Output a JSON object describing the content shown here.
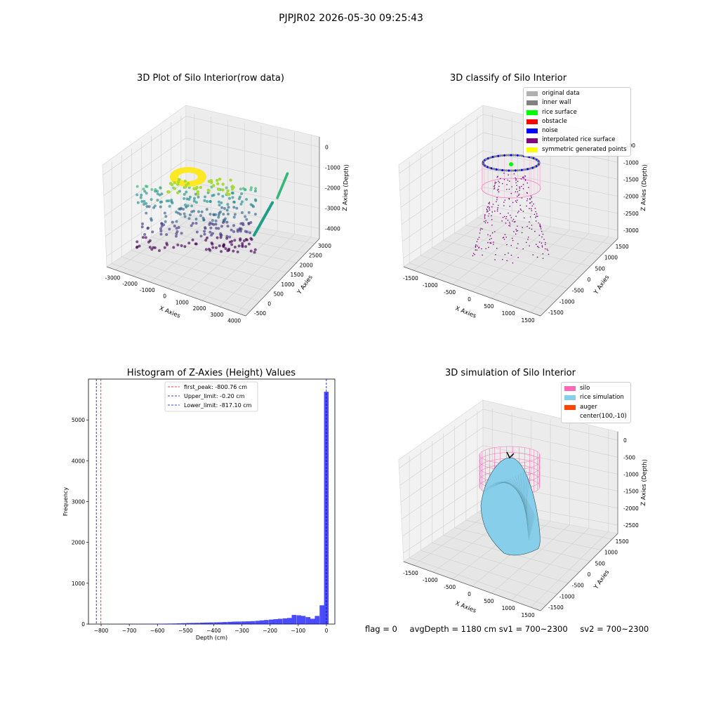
{
  "suptitle": "PJPJR02 2026-05-30 09:25:43",
  "chart_data": [
    {
      "type": "scatter",
      "title": "3D Plot of Silo Interior(row data)",
      "xlabel": "X Axies",
      "ylabel": "Y Axies",
      "zlabel": "Z Axies (Depth)",
      "x_ticks": [
        "-3000",
        "-2000",
        "-1000",
        "0",
        "1000",
        "2000",
        "3000",
        "4000"
      ],
      "y_ticks": [
        "-500",
        "0",
        "500",
        "1000",
        "1500",
        "2000",
        "2500",
        "3000"
      ],
      "z_ticks": [
        "0",
        "-1000",
        "-2000",
        "-3000",
        "-4000"
      ],
      "colormap": "viridis"
    },
    {
      "type": "scatter",
      "title": "3D classify of Silo Interior",
      "xlabel": "X Axies",
      "ylabel": "Y Axies",
      "zlabel": "Z Axies (Depth)",
      "x_ticks": [
        "-1500",
        "-1000",
        "-500",
        "0",
        "500",
        "1000",
        "1500"
      ],
      "y_ticks": [
        "-1500",
        "-1000",
        "-500",
        "0",
        "500",
        "1000",
        "1500"
      ],
      "z_ticks": [
        "-500",
        "-1000",
        "-1500",
        "-2000",
        "-2500",
        "-3000"
      ],
      "legend": [
        {
          "label": "original data",
          "color": "#b0b0b0"
        },
        {
          "label": "inner wall",
          "color": "#808080"
        },
        {
          "label": "rice surface",
          "color": "#00ff00"
        },
        {
          "label": "obstacle",
          "color": "#ff0000"
        },
        {
          "label": "noise",
          "color": "#0000ff"
        },
        {
          "label": "interpolated rice surface",
          "color": "#800080"
        },
        {
          "label": "symmetric generated points",
          "color": "#ffff00"
        }
      ]
    },
    {
      "type": "bar",
      "title": "Histogram of Z-Axies (Height) Values",
      "xlabel": "Depth (cm)",
      "ylabel": "Frequency",
      "xlim": [
        -845,
        30
      ],
      "ylim": [
        0,
        6000
      ],
      "x_ticks": [
        -800,
        -700,
        -600,
        -500,
        -400,
        -300,
        -200,
        -100,
        0
      ],
      "y_ticks": [
        0,
        1000,
        2000,
        3000,
        4000,
        5000
      ],
      "bar_color": "#0000ff",
      "bin_width": 16.34,
      "bins": [
        {
          "x": -719,
          "count": 3
        },
        {
          "x": -703,
          "count": 3
        },
        {
          "x": -687,
          "count": 4
        },
        {
          "x": -670,
          "count": 4
        },
        {
          "x": -654,
          "count": 5
        },
        {
          "x": -638,
          "count": 5
        },
        {
          "x": -621,
          "count": 6
        },
        {
          "x": -605,
          "count": 6
        },
        {
          "x": -589,
          "count": 8
        },
        {
          "x": -572,
          "count": 10
        },
        {
          "x": -556,
          "count": 12
        },
        {
          "x": -539,
          "count": 14
        },
        {
          "x": -523,
          "count": 18
        },
        {
          "x": -507,
          "count": 22
        },
        {
          "x": -490,
          "count": 26
        },
        {
          "x": -474,
          "count": 28
        },
        {
          "x": -458,
          "count": 30
        },
        {
          "x": -441,
          "count": 35
        },
        {
          "x": -425,
          "count": 38
        },
        {
          "x": -409,
          "count": 40
        },
        {
          "x": -392,
          "count": 42
        },
        {
          "x": -376,
          "count": 45
        },
        {
          "x": -360,
          "count": 50
        },
        {
          "x": -343,
          "count": 55
        },
        {
          "x": -327,
          "count": 60
        },
        {
          "x": -311,
          "count": 62
        },
        {
          "x": -294,
          "count": 65
        },
        {
          "x": -278,
          "count": 68
        },
        {
          "x": -262,
          "count": 72
        },
        {
          "x": -245,
          "count": 80
        },
        {
          "x": -229,
          "count": 90
        },
        {
          "x": -213,
          "count": 100
        },
        {
          "x": -196,
          "count": 110
        },
        {
          "x": -180,
          "count": 120
        },
        {
          "x": -164,
          "count": 130
        },
        {
          "x": -147,
          "count": 140
        },
        {
          "x": -131,
          "count": 150
        },
        {
          "x": -115,
          "count": 225
        },
        {
          "x": -98,
          "count": 215
        },
        {
          "x": -82,
          "count": 200
        },
        {
          "x": -65,
          "count": 170
        },
        {
          "x": -49,
          "count": 130
        },
        {
          "x": -33,
          "count": 200
        },
        {
          "x": -16,
          "count": 460
        },
        {
          "x": -0.2,
          "count": 5690
        }
      ],
      "vlines": [
        {
          "x": -800.76,
          "label": "first_peak: -800.76 cm",
          "color": "#ff0000"
        },
        {
          "x": -0.2,
          "label": "Upper_limit: -0.20 cm",
          "color": "#00008b"
        },
        {
          "x": -817.1,
          "label": "Lower_limit: -817.10 cm",
          "color": "#0000ff"
        }
      ]
    },
    {
      "type": "area",
      "title": "3D simulation of Silo Interior",
      "xlabel": "X Axies",
      "ylabel": "Y Axies",
      "zlabel": "Z Axies (Depth)",
      "x_ticks": [
        "-1500",
        "-1000",
        "-500",
        "0",
        "500",
        "1000",
        "1500"
      ],
      "y_ticks": [
        "-1500",
        "-1000",
        "-500",
        "0",
        "500",
        "1000",
        "1500"
      ],
      "z_ticks": [
        "0",
        "-500",
        "-1000",
        "-1500",
        "-2000",
        "-2500"
      ],
      "legend": [
        {
          "label": "silo",
          "color": "#ff69b4"
        },
        {
          "label": "rice simulation",
          "color": "#87ceeb"
        },
        {
          "label": "auger",
          "color": "#ff4500"
        },
        {
          "label": "center(100,-10)",
          "color": ""
        }
      ]
    }
  ],
  "stats": {
    "flag": "flag = 0",
    "avg_depth": "avgDepth = 1180 cm",
    "sv1": "sv1 = 700~2300",
    "sv2": "sv2 = 700~2300"
  }
}
